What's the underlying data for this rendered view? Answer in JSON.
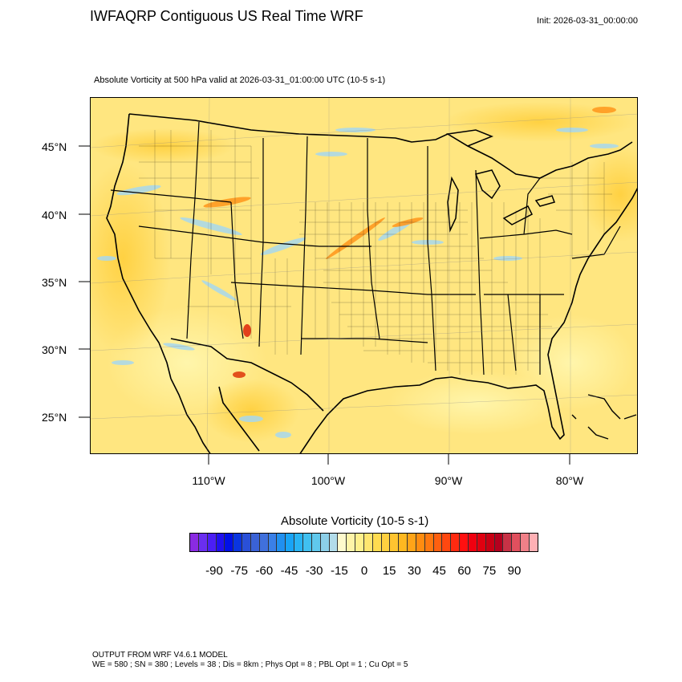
{
  "header": {
    "title": "IWFAQRP Contiguous US Real Time WRF",
    "init": "Init: 2026-03-31_00:00:00",
    "subtitle": "Absolute Vorticity at 500 hPa valid at 2026-03-31_01:00:00 UTC   (10-5 s-1)"
  },
  "map": {
    "lat_labels": [
      "45°N",
      "40°N",
      "35°N",
      "30°N",
      "25°N"
    ],
    "lon_labels": [
      "110°W",
      "100°W",
      "90°W",
      "80°W"
    ],
    "background_color": "#ffe680"
  },
  "colorbar": {
    "title": "Absolute Vorticity  (10-5 s-1)",
    "ticks": [
      "-90",
      "-75",
      "-60",
      "-45",
      "-30",
      "-15",
      "0",
      "15",
      "30",
      "45",
      "60",
      "75",
      "90"
    ],
    "colors": [
      "#8a2be2",
      "#6a2ef0",
      "#4b1ef5",
      "#2010f0",
      "#0010e8",
      "#0a35e0",
      "#2a50d8",
      "#3a62d6",
      "#4070dc",
      "#3a80e8",
      "#2090f0",
      "#18a4f6",
      "#28b4f4",
      "#40c0f0",
      "#60c8ec",
      "#8ccfe8",
      "#b2dcea",
      "#fffacd",
      "#fff4a8",
      "#fff08c",
      "#ffe670",
      "#ffdc50",
      "#ffd040",
      "#ffc430",
      "#ffb820",
      "#ffa418",
      "#ff8c10",
      "#ff7810",
      "#ff6010",
      "#ff4810",
      "#ff2a10",
      "#ff1010",
      "#f00010",
      "#e00010",
      "#c80014",
      "#b4001e",
      "#c83246",
      "#e0505e",
      "#f08088",
      "#ffb0b4"
    ]
  },
  "footer": {
    "line1": "OUTPUT FROM WRF V4.6.1 MODEL",
    "line2": "WE = 580 ; SN = 380 ; Levels = 38 ; Dis = 8km ; Phys Opt = 8 ; PBL Opt = 1 ; Cu Opt = 5"
  }
}
